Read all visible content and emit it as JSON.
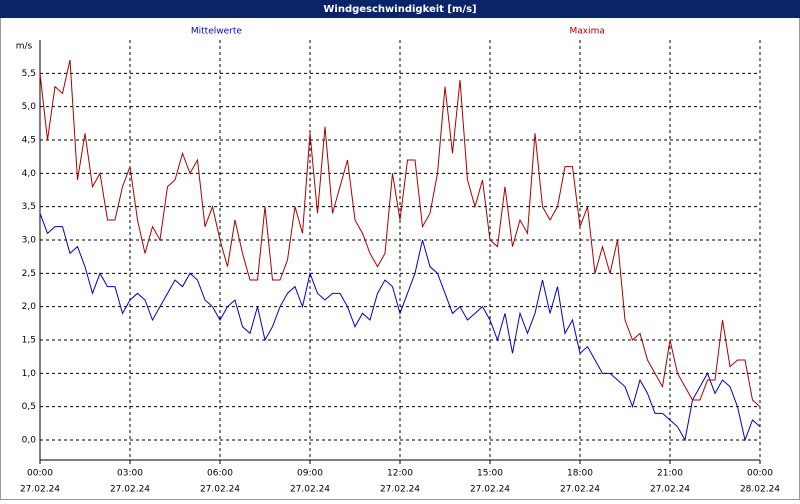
{
  "chart_data": {
    "type": "line",
    "title": "Windgeschwindigkeit [m/s]",
    "y_label": "m/s",
    "x": [
      0,
      0.25,
      0.5,
      0.75,
      1,
      1.25,
      1.5,
      1.75,
      2,
      2.25,
      2.5,
      2.75,
      3,
      3.25,
      3.5,
      3.75,
      4,
      4.25,
      4.5,
      4.75,
      5,
      5.25,
      5.5,
      5.75,
      6,
      6.25,
      6.5,
      6.75,
      7,
      7.25,
      7.5,
      7.75,
      8,
      8.25,
      8.5,
      8.75,
      9,
      9.25,
      9.5,
      9.75,
      10,
      10.25,
      10.5,
      10.75,
      11,
      11.25,
      11.5,
      11.75,
      12,
      12.25,
      12.5,
      12.75,
      13,
      13.25,
      13.5,
      13.75,
      14,
      14.25,
      14.5,
      14.75,
      15,
      15.25,
      15.5,
      15.75,
      16,
      16.25,
      16.5,
      16.75,
      17,
      17.25,
      17.5,
      17.75,
      18,
      18.25,
      18.5,
      18.75,
      19,
      19.25,
      19.5,
      19.75,
      20,
      20.25,
      20.5,
      20.75,
      21,
      21.25,
      21.5,
      21.75,
      22,
      22.25,
      22.5,
      22.75,
      23,
      23.25,
      23.5,
      23.75,
      24
    ],
    "series": [
      {
        "name": "Mittelwerte",
        "color": "#0000cc",
        "values": [
          3.4,
          3.1,
          3.2,
          3.2,
          2.8,
          2.9,
          2.6,
          2.2,
          2.5,
          2.3,
          2.3,
          1.9,
          2.1,
          2.2,
          2.1,
          1.8,
          2.0,
          2.2,
          2.4,
          2.3,
          2.5,
          2.4,
          2.1,
          2.0,
          1.8,
          2.0,
          2.1,
          1.7,
          1.6,
          2.0,
          1.5,
          1.7,
          2.0,
          2.2,
          2.3,
          2.0,
          2.5,
          2.2,
          2.1,
          2.2,
          2.2,
          2.0,
          1.7,
          1.9,
          1.8,
          2.2,
          2.4,
          2.3,
          1.9,
          2.2,
          2.5,
          3.0,
          2.6,
          2.5,
          2.2,
          1.9,
          2.0,
          1.8,
          1.9,
          2.0,
          1.8,
          1.5,
          1.9,
          1.3,
          1.9,
          1.6,
          1.9,
          2.4,
          1.9,
          2.3,
          1.6,
          1.8,
          1.3,
          1.4,
          1.2,
          1.0,
          1.0,
          0.9,
          0.8,
          0.5,
          0.9,
          0.7,
          0.4,
          0.4,
          0.3,
          0.2,
          0.0,
          0.6,
          0.8,
          1.0,
          0.7,
          0.9,
          0.8,
          0.5,
          0.0,
          0.3,
          0.2
        ]
      },
      {
        "name": "Maxima",
        "color": "#aa0000",
        "values": [
          5.5,
          4.5,
          5.3,
          5.2,
          5.7,
          3.9,
          4.6,
          3.8,
          4.0,
          3.3,
          3.3,
          3.8,
          4.1,
          3.3,
          2.8,
          3.2,
          3.0,
          3.8,
          3.9,
          4.3,
          4.0,
          4.2,
          3.2,
          3.5,
          3.0,
          2.6,
          3.3,
          2.8,
          2.4,
          2.4,
          3.5,
          2.4,
          2.4,
          2.7,
          3.5,
          3.1,
          4.6,
          3.4,
          4.7,
          3.4,
          3.8,
          4.2,
          3.3,
          3.1,
          2.8,
          2.6,
          2.8,
          4.0,
          3.3,
          4.2,
          4.2,
          3.2,
          3.4,
          4.0,
          5.3,
          4.3,
          5.4,
          3.9,
          3.5,
          3.9,
          3.0,
          2.9,
          3.8,
          2.9,
          3.3,
          3.1,
          4.6,
          3.5,
          3.3,
          3.5,
          4.1,
          4.1,
          3.2,
          3.5,
          2.5,
          2.9,
          2.5,
          3.0,
          1.8,
          1.5,
          1.6,
          1.2,
          1.0,
          0.8,
          1.5,
          1.0,
          0.8,
          0.6,
          0.6,
          0.9,
          0.9,
          1.8,
          1.1,
          1.2,
          1.2,
          0.6,
          0.5
        ]
      }
    ],
    "xlim": [
      0,
      24
    ],
    "xticks": [
      {
        "value": 0,
        "label": [
          "00:00",
          "27.02.24"
        ]
      },
      {
        "value": 3,
        "label": [
          "03:00",
          "27.02.24"
        ]
      },
      {
        "value": 6,
        "label": [
          "06:00",
          "27.02.24"
        ]
      },
      {
        "value": 9,
        "label": [
          "09:00",
          "27.02.24"
        ]
      },
      {
        "value": 12,
        "label": [
          "12:00",
          "27.02.24"
        ]
      },
      {
        "value": 15,
        "label": [
          "15:00",
          "27.02.24"
        ]
      },
      {
        "value": 18,
        "label": [
          "18:00",
          "27.02.24"
        ]
      },
      {
        "value": 21,
        "label": [
          "21:00",
          "27.02.24"
        ]
      },
      {
        "value": 24,
        "label": [
          "00:00",
          "28.02.24"
        ]
      }
    ],
    "ylim": [
      -0.3,
      6.0
    ],
    "yticks": [
      {
        "value": 0,
        "label": "0,0"
      },
      {
        "value": 0.5,
        "label": "0,5"
      },
      {
        "value": 1,
        "label": "1,0"
      },
      {
        "value": 1.5,
        "label": "1,5"
      },
      {
        "value": 2,
        "label": "2,0"
      },
      {
        "value": 2.5,
        "label": "2,5"
      },
      {
        "value": 3,
        "label": "3,0"
      },
      {
        "value": 3.5,
        "label": "3,5"
      },
      {
        "value": 4,
        "label": "4,0"
      },
      {
        "value": 4.5,
        "label": "4,5"
      },
      {
        "value": 5,
        "label": "5,0"
      },
      {
        "value": 5.5,
        "label": "5,5"
      }
    ],
    "grid": true
  }
}
